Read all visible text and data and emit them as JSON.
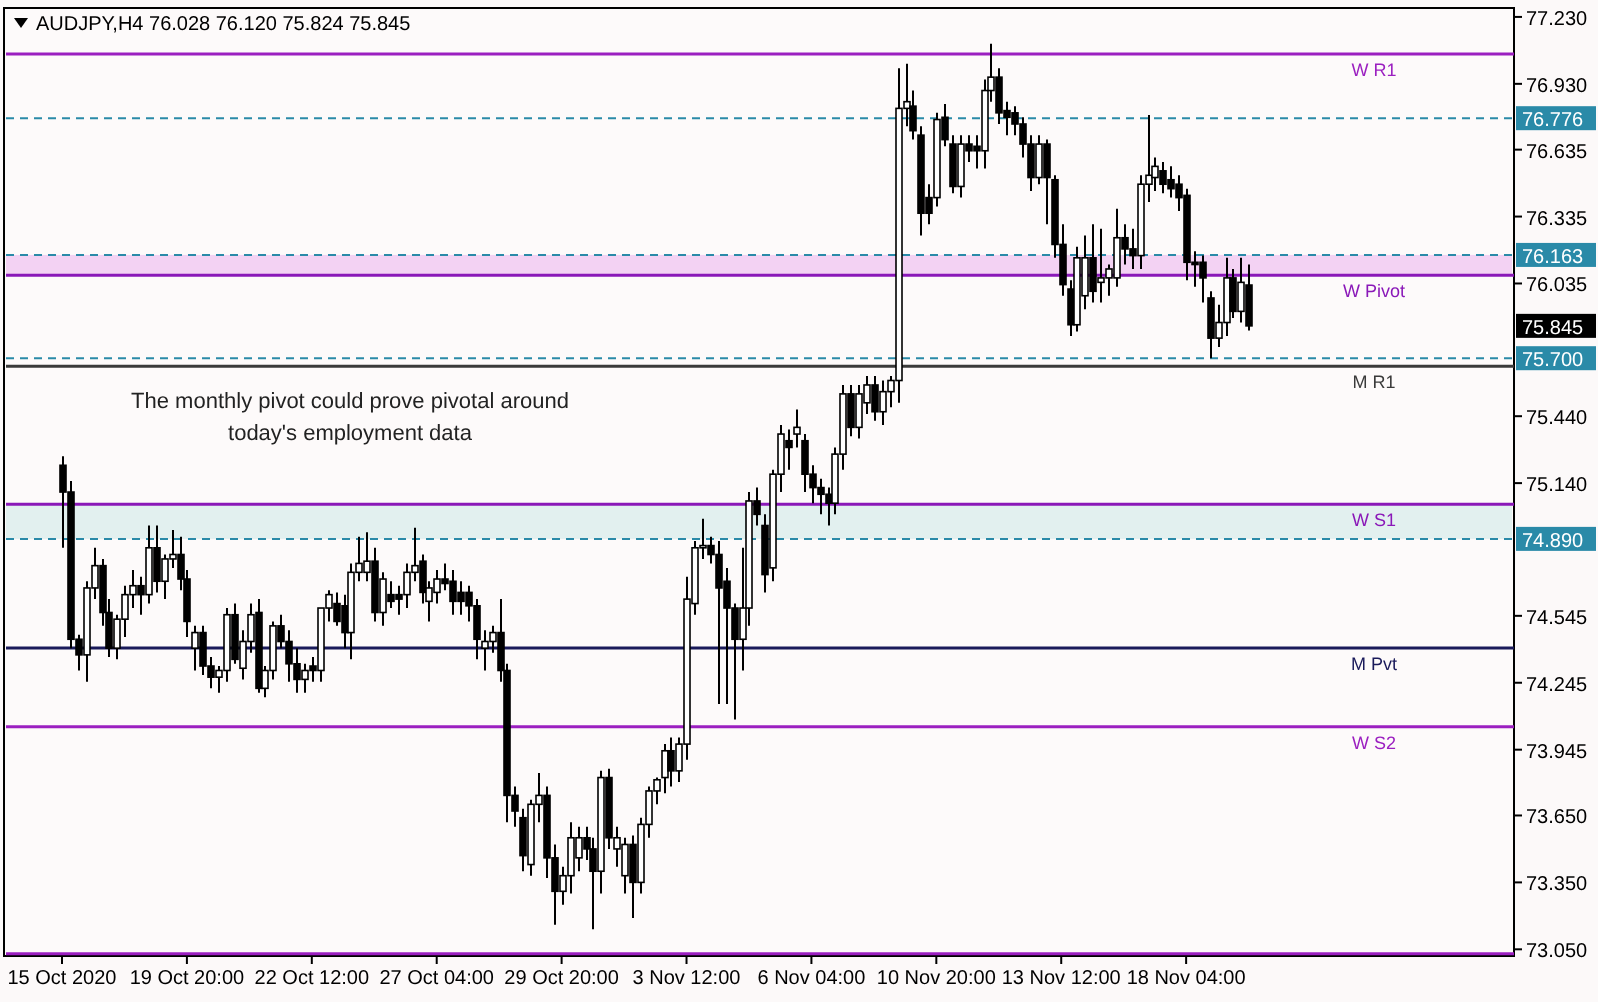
{
  "chart_data": {
    "type": "candlestick",
    "title": "AUDJPY,H4  76.028 76.120 75.824 75.845",
    "categories": [
      "15 Oct 2020",
      null,
      null,
      null,
      null,
      null,
      null,
      null,
      null,
      null,
      null,
      null,
      null,
      null,
      null,
      null,
      "19 Oct 20:00",
      null,
      null,
      null,
      null,
      null,
      null,
      null,
      null,
      null,
      null,
      null,
      null,
      null,
      null,
      null,
      "22 Oct 12:00",
      null,
      null,
      null,
      null,
      null,
      null,
      null,
      null,
      null,
      null,
      null,
      null,
      null,
      null,
      null,
      "27 Oct 04:00",
      null,
      null,
      null,
      null,
      null,
      null,
      null,
      null,
      null,
      null,
      null,
      null,
      null,
      null,
      null,
      "29 Oct 20:00",
      null,
      null,
      null,
      null,
      null,
      null,
      null,
      null,
      null,
      null,
      null,
      null,
      null,
      null,
      null,
      "3 Nov 12:00",
      null,
      null,
      null,
      null,
      null,
      null,
      null,
      null,
      null,
      null,
      null,
      null,
      null,
      null,
      null,
      "6 Nov 04:00",
      null,
      null,
      null,
      null,
      null,
      null,
      null,
      null,
      null,
      null,
      null,
      null,
      null,
      null,
      null,
      "10 Nov 20:00",
      null,
      null,
      null,
      null,
      null,
      null,
      null,
      null,
      null,
      null,
      null,
      null,
      null,
      null,
      null,
      "13 Nov 12:00",
      null,
      null,
      null,
      null,
      null,
      null,
      null,
      null,
      null,
      null,
      null,
      null,
      null,
      null,
      null,
      "18 Nov 04:00",
      null,
      null,
      null,
      null,
      null,
      null,
      null,
      null,
      null,
      null,
      null,
      null,
      null,
      null,
      null,
      null,
      null,
      null,
      null,
      null,
      null,
      null,
      null,
      null,
      null,
      null,
      null,
      null,
      null,
      null,
      null,
      null,
      null,
      null,
      null,
      null,
      null,
      null,
      null,
      null,
      null,
      null
    ],
    "ohlc": [
      [
        75.22,
        75.26,
        74.85,
        75.1
      ],
      [
        75.1,
        75.15,
        74.4,
        74.44
      ],
      [
        74.44,
        74.46,
        74.3,
        74.37
      ],
      [
        74.37,
        74.7,
        74.25,
        74.67
      ],
      [
        74.67,
        74.85,
        74.62,
        74.77
      ],
      [
        74.77,
        74.8,
        74.5,
        74.56
      ],
      [
        74.56,
        74.62,
        74.36,
        74.4
      ],
      [
        74.4,
        74.55,
        74.35,
        74.53
      ],
      [
        74.53,
        74.68,
        74.45,
        74.64
      ],
      [
        74.64,
        74.75,
        74.58,
        74.68
      ],
      [
        74.68,
        74.72,
        74.55,
        74.64
      ],
      [
        74.64,
        74.95,
        74.6,
        74.85
      ],
      [
        74.85,
        74.95,
        74.65,
        74.7
      ],
      [
        74.7,
        74.82,
        74.62,
        74.8
      ],
      [
        74.8,
        74.93,
        74.76,
        74.82
      ],
      [
        74.82,
        74.9,
        74.66,
        74.71
      ],
      [
        74.71,
        74.75,
        74.45,
        74.52
      ],
      [
        74.4,
        74.5,
        74.3,
        74.47
      ],
      [
        74.47,
        74.5,
        74.28,
        74.32
      ],
      [
        74.32,
        74.36,
        74.22,
        74.27
      ],
      [
        74.27,
        74.32,
        74.2,
        74.3
      ],
      [
        74.3,
        74.58,
        74.25,
        74.55
      ],
      [
        74.55,
        74.6,
        74.33,
        74.35
      ],
      [
        74.31,
        74.48,
        74.26,
        74.43
      ],
      [
        74.43,
        74.6,
        74.38,
        74.55
      ],
      [
        74.56,
        74.62,
        74.2,
        74.22
      ],
      [
        74.22,
        74.32,
        74.18,
        74.3
      ],
      [
        74.3,
        74.52,
        74.26,
        74.5
      ],
      [
        74.5,
        74.55,
        74.4,
        74.43
      ],
      [
        74.43,
        74.48,
        74.25,
        74.33
      ],
      [
        74.33,
        74.4,
        74.2,
        74.26
      ],
      [
        74.26,
        74.33,
        74.2,
        74.3
      ],
      [
        74.32,
        74.36,
        74.25,
        74.3
      ],
      [
        74.3,
        74.58,
        74.25,
        74.58
      ],
      [
        74.58,
        74.66,
        74.52,
        74.64
      ],
      [
        74.6,
        74.65,
        74.5,
        74.52
      ],
      [
        74.59,
        74.64,
        74.4,
        74.47
      ],
      [
        74.47,
        74.78,
        74.35,
        74.74
      ],
      [
        74.74,
        74.9,
        74.7,
        74.78
      ],
      [
        74.74,
        74.92,
        74.7,
        74.79
      ],
      [
        74.79,
        74.85,
        74.52,
        74.56
      ],
      [
        74.56,
        74.74,
        74.5,
        74.71
      ],
      [
        74.64,
        74.7,
        74.58,
        74.61
      ],
      [
        74.64,
        74.68,
        74.55,
        74.62
      ],
      [
        74.64,
        74.78,
        74.58,
        74.74
      ],
      [
        74.74,
        74.94,
        74.7,
        74.77
      ],
      [
        74.79,
        74.82,
        74.6,
        74.65
      ],
      [
        74.61,
        74.7,
        74.52,
        74.67
      ],
      [
        74.65,
        74.75,
        74.6,
        74.71
      ],
      [
        74.71,
        74.78,
        74.66,
        74.69
      ],
      [
        74.7,
        74.75,
        74.55,
        74.61
      ],
      [
        74.65,
        74.7,
        74.55,
        74.61
      ],
      [
        74.65,
        74.68,
        74.52,
        74.59
      ],
      [
        74.59,
        74.62,
        74.35,
        74.44
      ],
      [
        74.4,
        74.48,
        74.3,
        74.43
      ],
      [
        74.43,
        74.5,
        74.38,
        74.47
      ],
      [
        74.47,
        74.62,
        74.25,
        74.3
      ],
      [
        74.3,
        74.33,
        73.62,
        73.74
      ],
      [
        73.74,
        73.78,
        73.6,
        73.67
      ],
      [
        73.64,
        73.68,
        73.4,
        73.47
      ],
      [
        73.43,
        73.72,
        73.38,
        73.7
      ],
      [
        73.7,
        73.84,
        73.62,
        73.74
      ],
      [
        73.74,
        73.78,
        73.37,
        73.46
      ],
      [
        73.46,
        73.52,
        73.16,
        73.31
      ],
      [
        73.31,
        73.42,
        73.25,
        73.38
      ],
      [
        73.38,
        73.62,
        73.3,
        73.55
      ],
      [
        73.46,
        73.6,
        73.4,
        73.55
      ],
      [
        73.55,
        73.6,
        73.45,
        73.5
      ],
      [
        73.5,
        73.55,
        73.14,
        73.4
      ],
      [
        73.4,
        73.85,
        73.3,
        73.82
      ],
      [
        73.82,
        73.86,
        73.5,
        73.55
      ],
      [
        73.5,
        73.6,
        73.42,
        73.55
      ],
      [
        73.38,
        73.55,
        73.3,
        73.52
      ],
      [
        73.52,
        73.56,
        73.19,
        73.35
      ],
      [
        73.35,
        73.64,
        73.3,
        73.61
      ],
      [
        73.61,
        73.78,
        73.55,
        73.76
      ],
      [
        73.76,
        73.82,
        73.7,
        73.81
      ],
      [
        73.82,
        73.97,
        73.75,
        73.94
      ],
      [
        73.94,
        74.0,
        73.78,
        73.85
      ],
      [
        73.85,
        74.0,
        73.8,
        73.97
      ],
      [
        73.97,
        74.72,
        73.9,
        74.62
      ],
      [
        74.6,
        74.88,
        74.55,
        74.85
      ],
      [
        74.85,
        74.98,
        74.8,
        74.86
      ],
      [
        74.86,
        74.9,
        74.78,
        74.82
      ],
      [
        74.82,
        74.88,
        74.15,
        74.67
      ],
      [
        74.7,
        74.76,
        74.15,
        74.58
      ],
      [
        74.58,
        74.6,
        74.08,
        74.44
      ],
      [
        74.44,
        74.85,
        74.3,
        74.58
      ],
      [
        74.58,
        75.1,
        74.5,
        75.06
      ],
      [
        75.06,
        75.12,
        74.95,
        75.0
      ],
      [
        74.95,
        75.0,
        74.65,
        74.73
      ],
      [
        74.76,
        75.2,
        74.7,
        75.18
      ],
      [
        75.18,
        75.4,
        75.1,
        75.36
      ],
      [
        75.33,
        75.38,
        75.2,
        75.3
      ],
      [
        75.36,
        75.47,
        75.3,
        75.39
      ],
      [
        75.33,
        75.36,
        75.1,
        75.18
      ],
      [
        75.18,
        75.22,
        75.05,
        75.12
      ],
      [
        75.12,
        75.16,
        75.0,
        75.09
      ],
      [
        75.09,
        75.12,
        74.95,
        75.05
      ],
      [
        75.05,
        75.3,
        75.0,
        75.27
      ],
      [
        75.27,
        75.58,
        75.2,
        75.54
      ],
      [
        75.54,
        75.58,
        75.35,
        75.39
      ],
      [
        75.39,
        75.58,
        75.34,
        75.54
      ],
      [
        75.5,
        75.62,
        75.45,
        75.58
      ],
      [
        75.58,
        75.62,
        75.42,
        75.46
      ],
      [
        75.46,
        75.6,
        75.4,
        75.55
      ],
      [
        75.55,
        75.62,
        75.48,
        75.6
      ],
      [
        75.6,
        77.0,
        75.5,
        76.82
      ],
      [
        76.82,
        77.02,
        76.74,
        76.85
      ],
      [
        76.83,
        76.9,
        76.68,
        76.72
      ],
      [
        76.7,
        76.74,
        76.25,
        76.35
      ],
      [
        76.42,
        76.48,
        76.3,
        76.35
      ],
      [
        76.42,
        76.8,
        76.38,
        76.77
      ],
      [
        76.78,
        76.84,
        76.65,
        76.68
      ],
      [
        76.66,
        76.7,
        76.44,
        76.47
      ],
      [
        76.47,
        76.7,
        76.42,
        76.66
      ],
      [
        76.66,
        76.7,
        76.58,
        76.63
      ],
      [
        76.65,
        76.7,
        76.55,
        76.63
      ],
      [
        76.63,
        76.95,
        76.55,
        76.9
      ],
      [
        76.9,
        77.11,
        76.85,
        76.96
      ],
      [
        76.96,
        77.0,
        76.75,
        76.8
      ],
      [
        76.81,
        76.85,
        76.7,
        76.78
      ],
      [
        76.8,
        76.83,
        76.7,
        76.75
      ],
      [
        76.75,
        76.78,
        76.6,
        76.66
      ],
      [
        76.66,
        76.7,
        76.45,
        76.51
      ],
      [
        76.51,
        76.7,
        76.48,
        76.66
      ],
      [
        76.66,
        76.68,
        76.3,
        76.51
      ],
      [
        76.5,
        76.52,
        76.15,
        76.21
      ],
      [
        76.21,
        76.3,
        75.98,
        76.03
      ],
      [
        76.01,
        76.05,
        75.8,
        75.85
      ],
      [
        75.85,
        76.2,
        75.82,
        76.15
      ],
      [
        75.98,
        76.25,
        75.92,
        76.15
      ],
      [
        76.15,
        76.3,
        75.95,
        76.0
      ],
      [
        76.04,
        76.28,
        75.95,
        76.06
      ],
      [
        76.06,
        76.12,
        75.98,
        76.1
      ],
      [
        76.06,
        76.37,
        76.02,
        76.24
      ],
      [
        76.24,
        76.3,
        76.12,
        76.19
      ],
      [
        76.19,
        76.28,
        76.1,
        76.16
      ],
      [
        76.16,
        76.52,
        76.1,
        76.48
      ],
      [
        76.48,
        76.79,
        76.4,
        76.52
      ],
      [
        76.51,
        76.6,
        76.45,
        76.56
      ],
      [
        76.54,
        76.58,
        76.44,
        76.48
      ],
      [
        76.5,
        76.56,
        76.42,
        76.46
      ],
      [
        76.48,
        76.52,
        76.36,
        76.42
      ],
      [
        76.43,
        76.46,
        76.05,
        76.13
      ],
      [
        76.13,
        76.18,
        76.02,
        76.12
      ],
      [
        76.13,
        76.16,
        75.95,
        76.06
      ],
      [
        75.97,
        76.0,
        75.7,
        75.79
      ],
      [
        75.79,
        75.94,
        75.75,
        75.86
      ],
      [
        75.86,
        76.15,
        75.8,
        76.06
      ],
      [
        76.06,
        76.1,
        75.88,
        75.91
      ],
      [
        75.91,
        76.15,
        75.86,
        76.04
      ],
      [
        76.028,
        76.12,
        75.824,
        75.845
      ],
      null,
      null,
      null,
      null,
      null,
      null,
      null,
      null,
      null,
      null,
      null,
      null,
      null,
      null,
      null,
      null,
      null,
      null,
      null,
      null,
      null,
      null,
      null,
      null,
      null,
      null,
      null,
      null,
      null,
      null,
      null,
      null,
      null,
      null
    ],
    "ylim": [
      73.02,
      77.27
    ],
    "yticks": [
      {
        "value": 77.23,
        "label": "77.230"
      },
      {
        "value": 76.93,
        "label": "76.930"
      },
      {
        "value": 76.635,
        "label": "76.635"
      },
      {
        "value": 76.335,
        "label": "76.335"
      },
      {
        "value": 76.035,
        "label": "76.035"
      },
      {
        "value": 75.44,
        "label": "75.440"
      },
      {
        "value": 75.14,
        "label": "75.140"
      },
      {
        "value": 74.545,
        "label": "74.545"
      },
      {
        "value": 74.245,
        "label": "74.245"
      },
      {
        "value": 73.945,
        "label": "73.945"
      },
      {
        "value": 73.65,
        "label": "73.650"
      },
      {
        "value": 73.35,
        "label": "73.350"
      },
      {
        "value": 73.05,
        "label": "73.050"
      }
    ],
    "ref_lines": [
      {
        "axis": "y",
        "value": 77.064,
        "label": "W R1",
        "color": "#9b1fc0",
        "line_style": "solid"
      },
      {
        "axis": "y",
        "value": 76.776,
        "label": "76.776",
        "color": "#2a8aa8",
        "line_style": "dashed"
      },
      {
        "axis": "y",
        "value": 76.163,
        "label": "76.163",
        "color": "#2a8aa8",
        "line_style": "dashed"
      },
      {
        "axis": "y",
        "value": 76.072,
        "label": "W Pivot",
        "color": "#8a18b8",
        "line_style": "solid"
      },
      {
        "axis": "y",
        "value": 75.7,
        "label": "75.700",
        "color": "#2a8aa8",
        "line_style": "dashed"
      },
      {
        "axis": "y",
        "value": 75.664,
        "label": "M R1",
        "color": "#3a3a3a",
        "line_style": "solid"
      },
      {
        "axis": "y",
        "value": 75.045,
        "label": "W S1",
        "color": "#8a18b8",
        "line_style": "solid"
      },
      {
        "axis": "y",
        "value": 74.89,
        "label": "74.890",
        "color": "#2a8aa8",
        "line_style": "dashed"
      },
      {
        "axis": "y",
        "value": 74.401,
        "label": "M Pvt",
        "color": "#1a1a5a",
        "line_style": "solid"
      },
      {
        "axis": "y",
        "value": 74.048,
        "label": "W S2",
        "color": "#9b1fc0",
        "line_style": "solid"
      },
      {
        "axis": "y",
        "value": 73.03,
        "label": null,
        "color": "#9b1fc0",
        "line_style": "solid"
      }
    ],
    "bands": [
      {
        "axis": "y",
        "from": 76.072,
        "to": 76.163,
        "color": "#f3d2f3"
      },
      {
        "axis": "y",
        "from": 74.89,
        "to": 75.045,
        "color": "#e2f0ef"
      }
    ],
    "annotations": [
      "The monthly pivot could prove pivotal around\ntoday's employment data",
      {
        "text": "75.845",
        "y": 75.845
      }
    ],
    "grid": false
  }
}
